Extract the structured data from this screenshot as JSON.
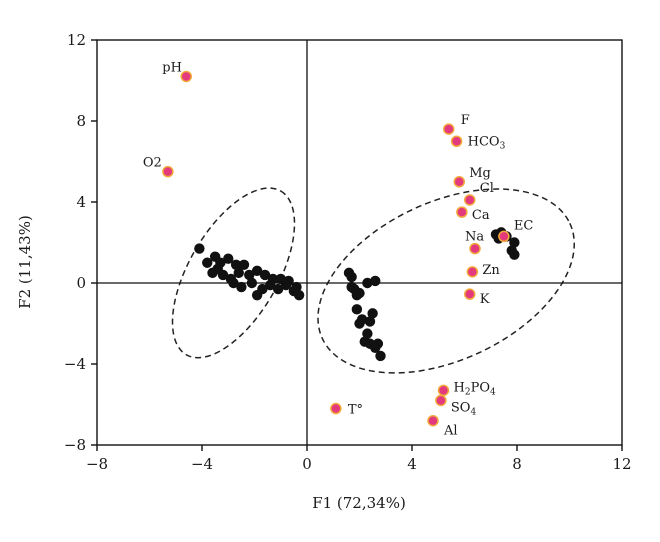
{
  "chart_data": {
    "type": "scatter",
    "xlabel": "F1 (72,34%)",
    "ylabel": "F2 (11,43%)",
    "xlim": [
      -8,
      12
    ],
    "ylim": [
      -8,
      12
    ],
    "x_ticks": [
      -8,
      -4,
      0,
      4,
      8,
      12
    ],
    "y_ticks": [
      12,
      8,
      4,
      0,
      -4,
      -8
    ],
    "x_tick_labels": [
      "−8",
      "−4",
      "0",
      "4",
      "8",
      "12"
    ],
    "y_tick_labels": [
      "12",
      "8",
      "4",
      "0",
      "−4",
      "−8"
    ],
    "grid": false,
    "zero_lines": true,
    "colors": {
      "variable_fill": "#e23a7c",
      "variable_stroke": "#f2a93b",
      "observation": "#111111",
      "ellipse": "#222222"
    },
    "variables": [
      {
        "label": "pH",
        "x": -4.6,
        "y": 10.2
      },
      {
        "label": "O2",
        "x": -5.3,
        "y": 5.5
      },
      {
        "label": "F",
        "x": 5.4,
        "y": 7.6
      },
      {
        "label": "HCO",
        "sub": "3",
        "x": 5.7,
        "y": 7.0
      },
      {
        "label": "Mg",
        "x": 5.8,
        "y": 5.0
      },
      {
        "label": "Cl",
        "x": 6.2,
        "y": 4.1
      },
      {
        "label": "Ca",
        "x": 5.9,
        "y": 3.5
      },
      {
        "label": "Na",
        "x": 6.4,
        "y": 1.7
      },
      {
        "label": "EC",
        "x": 7.5,
        "y": 2.3
      },
      {
        "label": "Zn",
        "x": 6.3,
        "y": 0.55
      },
      {
        "label": "K",
        "x": 6.2,
        "y": -0.55
      },
      {
        "label": "T°",
        "x": 1.1,
        "y": -6.2
      },
      {
        "label": "H",
        "sub": "2",
        "label2": "PO",
        "sub2": "4",
        "x": 5.2,
        "y": -5.3
      },
      {
        "label": "SO",
        "sub": "4",
        "x": 5.1,
        "y": -5.8
      },
      {
        "label": "Al",
        "x": 4.8,
        "y": -6.8
      }
    ],
    "observations": [
      [
        -4.1,
        1.7
      ],
      [
        -3.8,
        1.0
      ],
      [
        -3.5,
        1.3
      ],
      [
        -3.3,
        1.0
      ],
      [
        -3.0,
        1.2
      ],
      [
        -2.7,
        0.9
      ],
      [
        -2.4,
        0.9
      ],
      [
        -3.6,
        0.5
      ],
      [
        -3.2,
        0.4
      ],
      [
        -2.9,
        0.2
      ],
      [
        -2.6,
        0.5
      ],
      [
        -2.2,
        0.4
      ],
      [
        -1.9,
        0.6
      ],
      [
        -1.6,
        0.4
      ],
      [
        -1.3,
        0.2
      ],
      [
        -1.0,
        0.2
      ],
      [
        -0.7,
        0.1
      ],
      [
        -0.4,
        -0.2
      ],
      [
        -2.5,
        -0.2
      ],
      [
        -2.1,
        0.0
      ],
      [
        -1.7,
        -0.3
      ],
      [
        -1.4,
        -0.1
      ],
      [
        -1.1,
        -0.3
      ],
      [
        -0.8,
        -0.1
      ],
      [
        -0.5,
        -0.4
      ],
      [
        -0.3,
        -0.6
      ],
      [
        -1.9,
        -0.6
      ],
      [
        -3.4,
        0.7
      ],
      [
        -2.8,
        0.0
      ],
      [
        1.6,
        0.5
      ],
      [
        1.7,
        0.3
      ],
      [
        1.8,
        -0.3
      ],
      [
        1.9,
        -0.6
      ],
      [
        1.7,
        -0.2
      ],
      [
        2.0,
        -0.5
      ],
      [
        2.3,
        0.0
      ],
      [
        2.6,
        0.1
      ],
      [
        1.9,
        -1.3
      ],
      [
        2.1,
        -1.8
      ],
      [
        2.0,
        -2.0
      ],
      [
        2.4,
        -1.9
      ],
      [
        2.5,
        -1.5
      ],
      [
        2.3,
        -2.5
      ],
      [
        2.2,
        -2.9
      ],
      [
        2.4,
        -3.0
      ],
      [
        2.7,
        -3.0
      ],
      [
        2.6,
        -3.2
      ],
      [
        2.8,
        -3.6
      ],
      [
        7.2,
        2.4
      ],
      [
        7.4,
        2.5
      ],
      [
        7.6,
        2.3
      ],
      [
        7.9,
        2.0
      ],
      [
        7.8,
        1.6
      ],
      [
        7.9,
        1.4
      ],
      [
        7.3,
        2.2
      ]
    ],
    "ellipses": [
      {
        "cx": -2.8,
        "cy": 0.5,
        "rx": 3.6,
        "ry": 2.2,
        "angle_deg": -60
      },
      {
        "cx": 5.3,
        "cy": 0.1,
        "rx": 5.2,
        "ry": 3.9,
        "angle_deg": -25
      }
    ]
  }
}
